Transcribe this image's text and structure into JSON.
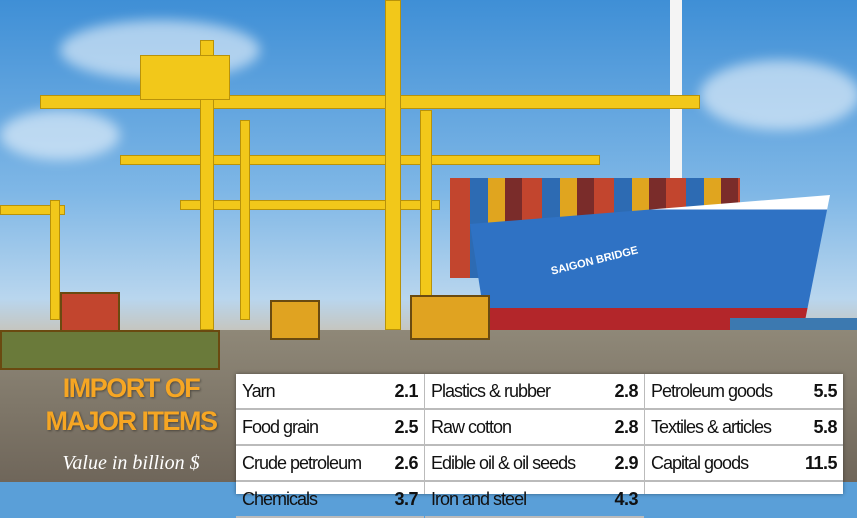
{
  "title_line1": "IMPORT OF",
  "title_line2": "MAJOR ITEMS",
  "subtitle": "Value in billion $",
  "ship_name": "SAIGON BRIDGE",
  "table": {
    "columns": [
      [
        {
          "item": "Yarn",
          "value": "2.1"
        },
        {
          "item": "Food grain",
          "value": "2.5"
        },
        {
          "item": "Crude petroleum",
          "value": "2.6"
        },
        {
          "item": "Chemicals",
          "value": "3.7"
        }
      ],
      [
        {
          "item": "Plastics & rubber",
          "value": "2.8"
        },
        {
          "item": "Raw cotton",
          "value": "2.8"
        },
        {
          "item": "Edible oil & oil seeds",
          "value": "2.9"
        },
        {
          "item": "Iron and steel",
          "value": "4.3"
        }
      ],
      [
        {
          "item": "Petroleum goods",
          "value": "5.5"
        },
        {
          "item": "Textiles & articles",
          "value": "5.8"
        },
        {
          "item": "Capital goods",
          "value": "11.5"
        }
      ]
    ]
  },
  "colors": {
    "title": "#f6a623",
    "crane": "#f2c81a",
    "ship_hull": "#2f72c4"
  }
}
